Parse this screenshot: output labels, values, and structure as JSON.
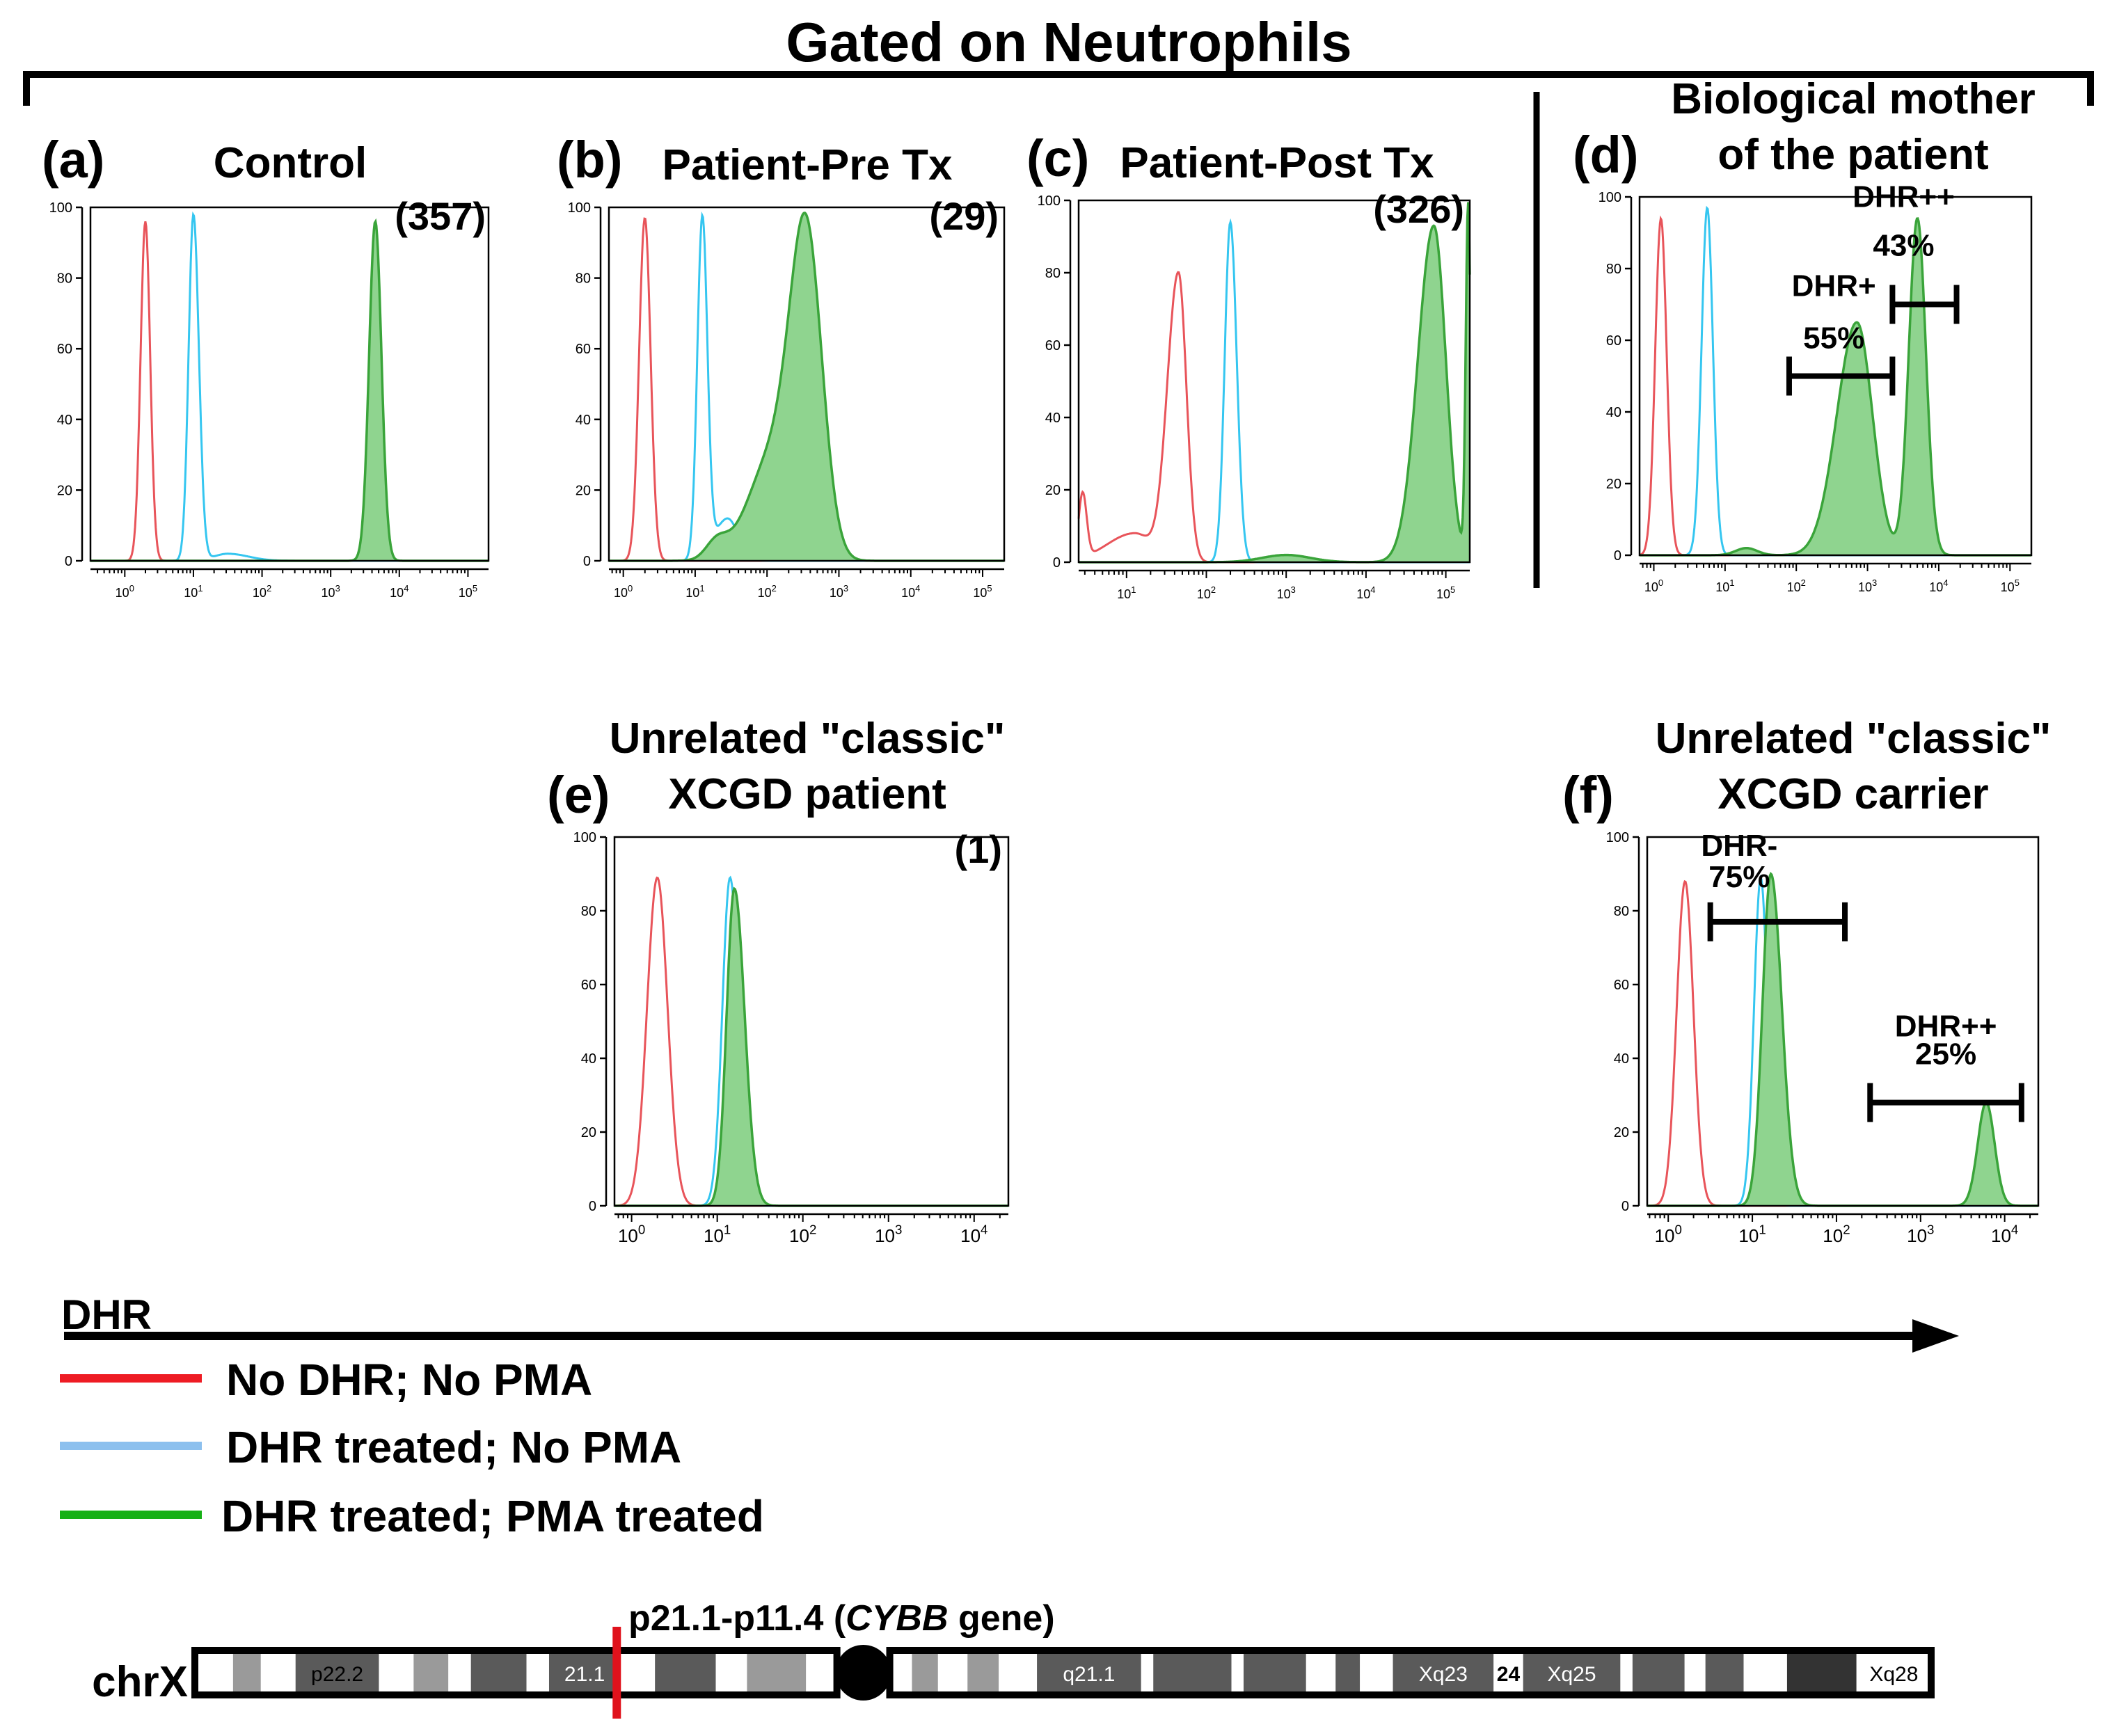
{
  "figure": {
    "main_title": "Gated on Neutrophils",
    "dhr_axis_label": "DHR"
  },
  "colors": {
    "red": "#e8545a",
    "blue": "#35c6f0",
    "green": "#3aa43a",
    "green_fill": "#8fd48f",
    "legend_red": "#ee1c24",
    "legend_blue": "#8cc0ee",
    "legend_green": "#16b016",
    "chrom_dark": "#333333",
    "chrom_mid": "#5a5a5a",
    "chrom_light": "#9a9a9a",
    "marker": "#e0121c"
  },
  "legend": [
    {
      "label": "No DHR; No PMA",
      "color_key": "legend_red"
    },
    {
      "label": "DHR treated; No PMA",
      "color_key": "legend_blue"
    },
    {
      "label": "DHR treated; PMA treated",
      "color_key": "legend_green"
    }
  ],
  "chart_data": [
    {
      "id": "a",
      "panel_label": "(a)",
      "title_lines": [
        "Control"
      ],
      "mfi": "(357)",
      "type": "area",
      "xscale": "log",
      "xlim": [
        -0.5,
        5.3
      ],
      "ylim": [
        0,
        100
      ],
      "xticks": [
        0,
        1,
        2,
        3,
        4,
        5
      ],
      "yticks": [
        0,
        20,
        40,
        60,
        80,
        100
      ],
      "series": [
        {
          "name": "No DHR; No PMA",
          "color_key": "red",
          "fill": false,
          "peaks": [
            [
              0.3,
              96,
              0.07,
              0.07
            ]
          ]
        },
        {
          "name": "DHR treated; No PMA",
          "color_key": "blue",
          "fill": false,
          "peaks": [
            [
              1.0,
              98,
              0.07,
              0.08
            ],
            [
              1.5,
              2,
              0.2,
              0.3
            ]
          ]
        },
        {
          "name": "DHR treated; PMA treated",
          "color_key": "green",
          "fill": true,
          "peaks": [
            [
              3.65,
              96,
              0.09,
              0.09
            ]
          ]
        }
      ],
      "gates": []
    },
    {
      "id": "b",
      "panel_label": "(b)",
      "title_lines": [
        "Patient-Pre Tx"
      ],
      "mfi": "(29)",
      "type": "area",
      "xscale": "log",
      "xlim": [
        -0.2,
        5.3
      ],
      "ylim": [
        0,
        100
      ],
      "xticks": [
        0,
        1,
        2,
        3,
        4,
        5
      ],
      "yticks": [
        0,
        20,
        40,
        60,
        80,
        100
      ],
      "series": [
        {
          "name": "No DHR; No PMA",
          "color_key": "red",
          "fill": false,
          "peaks": [
            [
              0.3,
              97,
              0.08,
              0.08
            ]
          ]
        },
        {
          "name": "DHR treated; No PMA",
          "color_key": "blue",
          "fill": false,
          "peaks": [
            [
              1.1,
              96,
              0.07,
              0.07
            ],
            [
              1.45,
              12,
              0.18,
              0.15
            ]
          ]
        },
        {
          "name": "DHR treated; PMA treated",
          "color_key": "green",
          "fill": true,
          "peaks": [
            [
              1.3,
              5,
              0.15,
              0.15
            ],
            [
              2.1,
              30,
              0.35,
              0.3
            ],
            [
              2.55,
              88,
              0.22,
              0.22
            ]
          ]
        }
      ],
      "gates": []
    },
    {
      "id": "c",
      "panel_label": "(c)",
      "title_lines": [
        "Patient-Post Tx"
      ],
      "mfi": "(326)",
      "type": "area",
      "xscale": "log",
      "xlim": [
        0.4,
        5.3
      ],
      "ylim": [
        0,
        100
      ],
      "xticks": [
        1,
        2,
        3,
        4,
        5
      ],
      "yticks": [
        0,
        20,
        40,
        60,
        80,
        100
      ],
      "series": [
        {
          "name": "No DHR; No PMA",
          "color_key": "red",
          "fill": false,
          "peaks": [
            [
              0.45,
              18,
              0.05,
              0.05
            ],
            [
              1.1,
              8,
              0.35,
              0.2
            ],
            [
              1.65,
              80,
              0.14,
              0.1
            ]
          ]
        },
        {
          "name": "DHR treated; No PMA",
          "color_key": "blue",
          "fill": false,
          "peaks": [
            [
              2.3,
              94,
              0.07,
              0.08
            ]
          ]
        },
        {
          "name": "DHR treated; PMA treated",
          "color_key": "green",
          "fill": true,
          "peaks": [
            [
              3.0,
              2,
              0.3,
              0.3
            ],
            [
              4.85,
              93,
              0.2,
              0.15
            ],
            [
              5.28,
              98,
              0.03,
              0.03
            ]
          ]
        }
      ],
      "gates": []
    },
    {
      "id": "d",
      "panel_label": "(d)",
      "title_lines": [
        "Biological mother",
        "of the patient"
      ],
      "mfi": "",
      "type": "area",
      "xscale": "log",
      "xlim": [
        -0.2,
        5.3
      ],
      "ylim": [
        0,
        100
      ],
      "xticks": [
        0,
        1,
        2,
        3,
        4,
        5
      ],
      "yticks": [
        0,
        20,
        40,
        60,
        80,
        100
      ],
      "series": [
        {
          "name": "No DHR; No PMA",
          "color_key": "red",
          "fill": false,
          "peaks": [
            [
              0.1,
              94,
              0.08,
              0.08
            ]
          ]
        },
        {
          "name": "DHR treated; No PMA",
          "color_key": "blue",
          "fill": false,
          "peaks": [
            [
              0.75,
              97,
              0.08,
              0.08
            ]
          ]
        },
        {
          "name": "DHR treated; PMA treated",
          "color_key": "green",
          "fill": true,
          "peaks": [
            [
              1.3,
              2,
              0.15,
              0.15
            ],
            [
              2.85,
              65,
              0.28,
              0.22
            ],
            [
              3.7,
              94,
              0.12,
              0.12
            ]
          ]
        }
      ],
      "gates": [
        {
          "label": "DHR+",
          "percent": "55%",
          "from": 1.9,
          "to": 3.35,
          "y": 50
        },
        {
          "label": "DHR++",
          "percent": "43%",
          "from": 3.35,
          "to": 4.25,
          "y": 70
        }
      ]
    },
    {
      "id": "e",
      "panel_label": "(e)",
      "title_lines": [
        "Unrelated \"classic\"",
        "XCGD patient"
      ],
      "mfi": "(1)",
      "type": "area",
      "xscale": "log",
      "xlim": [
        -0.2,
        4.4
      ],
      "ylim": [
        0,
        100
      ],
      "xticks": [
        0,
        1,
        2,
        3,
        4
      ],
      "yticks": [
        0,
        20,
        40,
        60,
        80,
        100
      ],
      "series": [
        {
          "name": "No DHR; No PMA",
          "color_key": "red",
          "fill": false,
          "peaks": [
            [
              0.3,
              89,
              0.12,
              0.12
            ]
          ]
        },
        {
          "name": "DHR treated; No PMA",
          "color_key": "blue",
          "fill": false,
          "peaks": [
            [
              1.15,
              89,
              0.09,
              0.1
            ]
          ]
        },
        {
          "name": "DHR treated; PMA treated",
          "color_key": "green",
          "fill": true,
          "peaks": [
            [
              1.2,
              86,
              0.09,
              0.12
            ]
          ]
        }
      ],
      "gates": []
    },
    {
      "id": "f",
      "panel_label": "(f)",
      "title_lines": [
        "Unrelated \"classic\"",
        "XCGD carrier"
      ],
      "mfi": "",
      "type": "area",
      "xscale": "log",
      "xlim": [
        -0.25,
        4.4
      ],
      "ylim": [
        0,
        100
      ],
      "xticks": [
        0,
        1,
        2,
        3,
        4
      ],
      "yticks": [
        0,
        20,
        40,
        60,
        80,
        100
      ],
      "series": [
        {
          "name": "No DHR; No PMA",
          "color_key": "red",
          "fill": false,
          "peaks": [
            [
              0.2,
              88,
              0.1,
              0.1
            ]
          ]
        },
        {
          "name": "DHR treated; No PMA",
          "color_key": "blue",
          "fill": false,
          "peaks": [
            [
              1.1,
              89,
              0.08,
              0.08
            ]
          ]
        },
        {
          "name": "DHR treated; PMA treated",
          "color_key": "green",
          "fill": true,
          "peaks": [
            [
              1.22,
              90,
              0.1,
              0.13
            ],
            [
              3.78,
              28,
              0.1,
              0.1
            ]
          ]
        }
      ],
      "gates": [
        {
          "label": "DHR-",
          "percent": "75%",
          "from": 0.5,
          "to": 2.1,
          "y": 77
        },
        {
          "label": "DHR++",
          "percent": "25%",
          "from": 2.4,
          "to": 4.2,
          "y": 28
        }
      ]
    }
  ],
  "chromosome": {
    "label": "chrX",
    "annotation_prefix": "p21.1-p11.4 (",
    "annotation_gene": "CYBB",
    "annotation_suffix": " gene)",
    "bands": [
      {
        "from": 0.0,
        "to": 0.022,
        "tone": "white"
      },
      {
        "from": 0.022,
        "to": 0.038,
        "tone": "light"
      },
      {
        "from": 0.038,
        "to": 0.058,
        "tone": "white"
      },
      {
        "from": 0.058,
        "to": 0.106,
        "tone": "mid",
        "label": "p22.2"
      },
      {
        "from": 0.106,
        "to": 0.126,
        "tone": "white"
      },
      {
        "from": 0.126,
        "to": 0.146,
        "tone": "light"
      },
      {
        "from": 0.146,
        "to": 0.159,
        "tone": "white"
      },
      {
        "from": 0.159,
        "to": 0.191,
        "tone": "mid"
      },
      {
        "from": 0.191,
        "to": 0.204,
        "tone": "white"
      },
      {
        "from": 0.204,
        "to": 0.245,
        "tone": "mid",
        "label": "21.1"
      },
      {
        "from": 0.245,
        "to": 0.265,
        "tone": "white"
      },
      {
        "from": 0.265,
        "to": 0.3,
        "tone": "mid"
      },
      {
        "from": 0.3,
        "to": 0.318,
        "tone": "white"
      },
      {
        "from": 0.318,
        "to": 0.352,
        "tone": "light"
      },
      {
        "from": 0.352,
        "to": 0.37,
        "tone": "white"
      },
      {
        "from": 0.4,
        "to": 0.413,
        "tone": "white"
      },
      {
        "from": 0.413,
        "to": 0.428,
        "tone": "light"
      },
      {
        "from": 0.428,
        "to": 0.445,
        "tone": "white"
      },
      {
        "from": 0.445,
        "to": 0.463,
        "tone": "light"
      },
      {
        "from": 0.463,
        "to": 0.485,
        "tone": "white"
      },
      {
        "from": 0.485,
        "to": 0.545,
        "tone": "mid",
        "label": "q21.1"
      },
      {
        "from": 0.545,
        "to": 0.552,
        "tone": "white"
      },
      {
        "from": 0.552,
        "to": 0.597,
        "tone": "mid"
      },
      {
        "from": 0.597,
        "to": 0.604,
        "tone": "white"
      },
      {
        "from": 0.604,
        "to": 0.64,
        "tone": "mid"
      },
      {
        "from": 0.64,
        "to": 0.657,
        "tone": "white"
      },
      {
        "from": 0.657,
        "to": 0.671,
        "tone": "mid"
      },
      {
        "from": 0.671,
        "to": 0.69,
        "tone": "white"
      },
      {
        "from": 0.69,
        "to": 0.748,
        "tone": "mid",
        "label": "Xq23"
      },
      {
        "from": 0.748,
        "to": 0.765,
        "tone": "white",
        "label": "24"
      },
      {
        "from": 0.765,
        "to": 0.821,
        "tone": "mid",
        "label": "Xq25"
      },
      {
        "from": 0.821,
        "to": 0.828,
        "tone": "white"
      },
      {
        "from": 0.828,
        "to": 0.858,
        "tone": "mid"
      },
      {
        "from": 0.858,
        "to": 0.87,
        "tone": "white"
      },
      {
        "from": 0.87,
        "to": 0.892,
        "tone": "mid"
      },
      {
        "from": 0.892,
        "to": 0.917,
        "tone": "white"
      },
      {
        "from": 0.917,
        "to": 0.957,
        "tone": "dark"
      },
      {
        "from": 0.957,
        "to": 1.0,
        "tone": "white",
        "label": "Xq28"
      }
    ],
    "centromere_position": 0.385,
    "marker_position": 0.243
  }
}
